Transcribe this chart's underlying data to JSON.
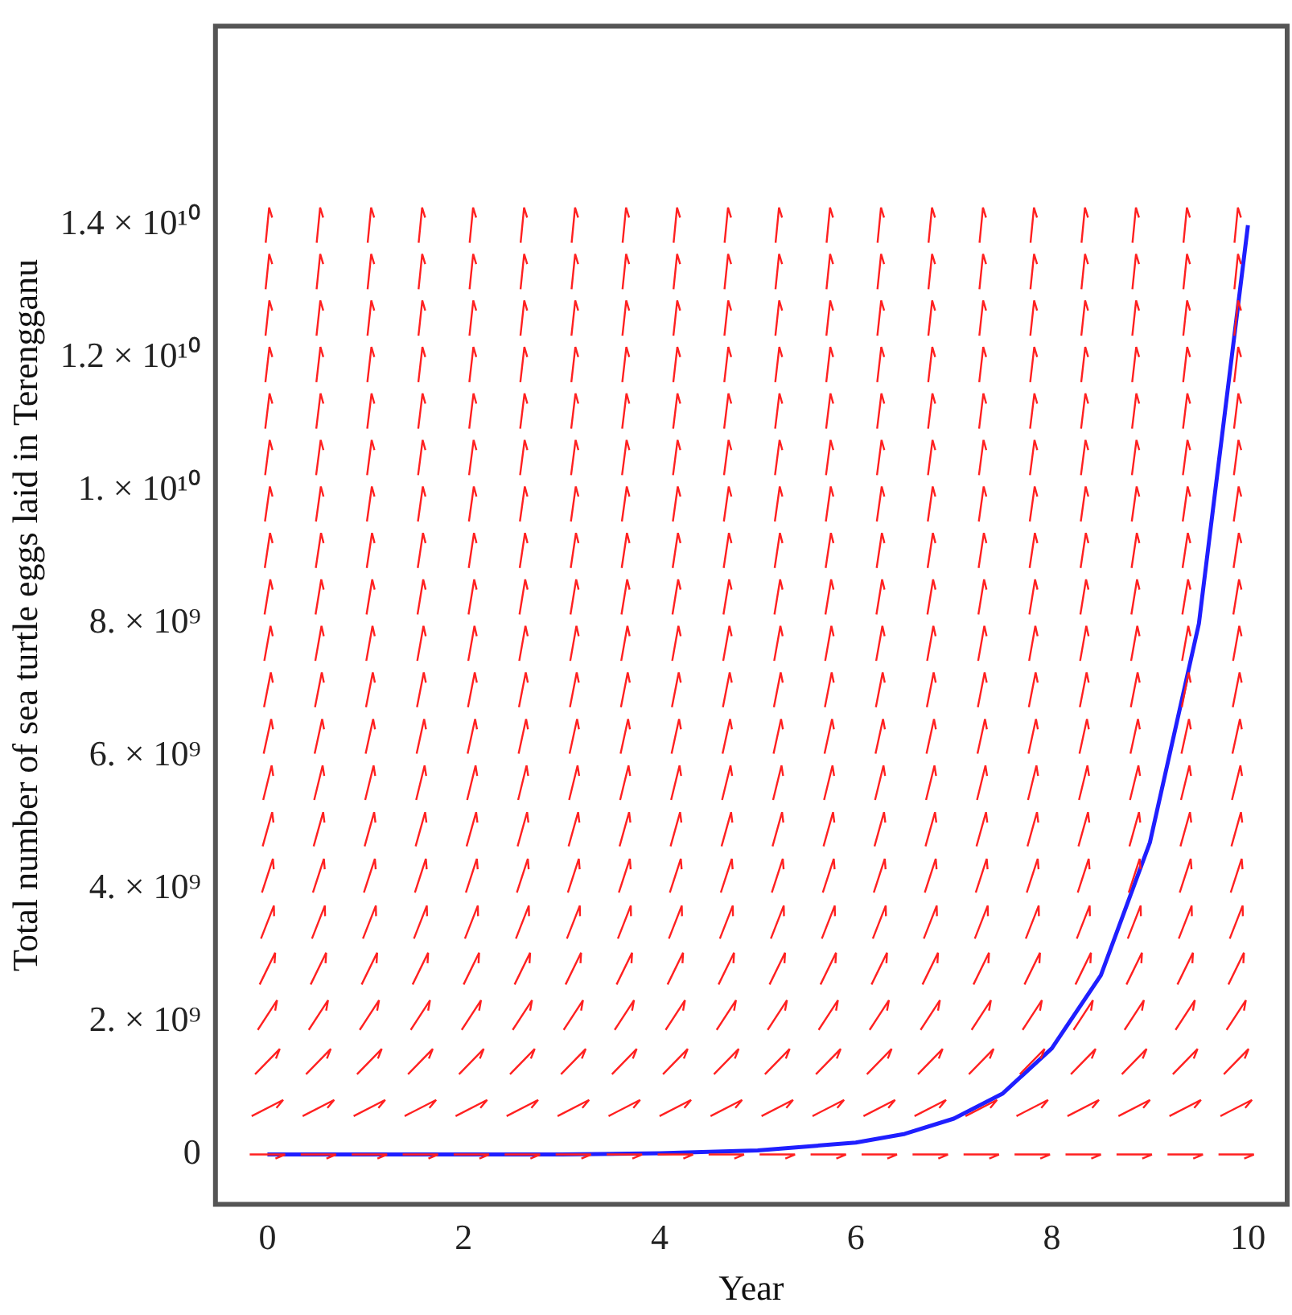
{
  "chart_data": {
    "type": "line",
    "xlabel": "Year",
    "ylabel": "Total number of sea turtle eggs laid in Terengganu",
    "x": [
      0,
      1,
      2,
      3,
      4,
      5,
      6,
      6.5,
      7,
      7.5,
      8,
      8.5,
      9,
      9.5,
      10
    ],
    "series": [
      {
        "color": "#1f1fff",
        "values": [
          0,
          0,
          0,
          0,
          20000000,
          60000000,
          180000000,
          310000000,
          540000000,
          920000000,
          1600000000,
          2700000000,
          4700000000,
          8000000000,
          14000000000
        ]
      }
    ],
    "xlim": [
      -0.53,
      10.4
    ],
    "xticks": [
      0,
      2,
      4,
      6,
      8,
      10
    ],
    "ylim": [
      -750000000,
      17000000000
    ],
    "yticks": [
      {
        "value": 0,
        "label": "0"
      },
      {
        "value": 2000000000,
        "label": "2. × 10⁹"
      },
      {
        "value": 4000000000,
        "label": "4. × 10⁹"
      },
      {
        "value": 6000000000,
        "label": "6. × 10⁹"
      },
      {
        "value": 8000000000,
        "label": "8. × 10⁹"
      },
      {
        "value": 10000000000,
        "label": "1. × 10¹⁰"
      },
      {
        "value": 12000000000,
        "label": "1.2 × 10¹⁰"
      },
      {
        "value": 14000000000,
        "label": "1.4 × 10¹⁰"
      }
    ],
    "grid": false,
    "legend": false,
    "marker": "none",
    "line_style": "solid"
  }
}
